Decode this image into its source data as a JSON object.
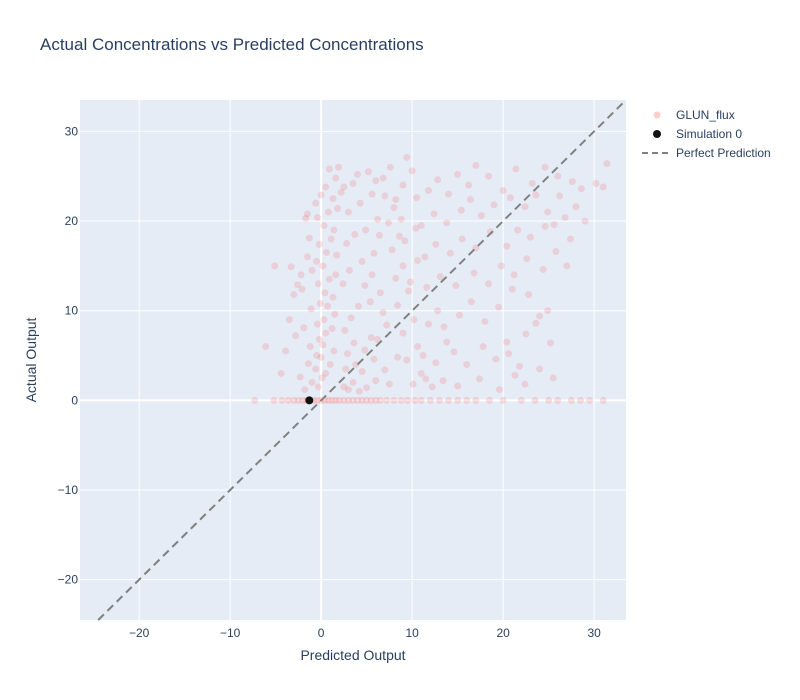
{
  "chart_data": {
    "type": "scatter",
    "title": "Actual Concentrations vs Predicted Concentrations",
    "xlabel": "Predicted Output",
    "ylabel": "Actual Output",
    "xlim": [
      -26.5,
      33.5
    ],
    "ylim": [
      -24.5,
      33.5
    ],
    "x_ticks": [
      -20,
      -10,
      0,
      10,
      20,
      30
    ],
    "y_ticks": [
      -20,
      -10,
      0,
      10,
      20,
      30
    ],
    "grid": true,
    "legend_position": "top-right",
    "series": [
      {
        "name": "GLUN_flux",
        "mode": "markers",
        "color": "#ff0000",
        "opacity": 0.12,
        "points": [
          [
            -7.3,
            0
          ],
          [
            -5.2,
            0
          ],
          [
            -4.3,
            0
          ],
          [
            -3.6,
            0
          ],
          [
            -3.0,
            0
          ],
          [
            -2.5,
            0
          ],
          [
            -2.0,
            0
          ],
          [
            -1.6,
            0
          ],
          [
            -1.2,
            0
          ],
          [
            -0.8,
            0
          ],
          [
            -0.4,
            0
          ],
          [
            0.0,
            0
          ],
          [
            0.4,
            0
          ],
          [
            0.8,
            0
          ],
          [
            1.2,
            0
          ],
          [
            1.6,
            0
          ],
          [
            2.0,
            0
          ],
          [
            2.5,
            0
          ],
          [
            3.0,
            0
          ],
          [
            3.5,
            0
          ],
          [
            4.0,
            0
          ],
          [
            4.5,
            0
          ],
          [
            5.0,
            0
          ],
          [
            5.5,
            0
          ],
          [
            6.0,
            0
          ],
          [
            6.5,
            0
          ],
          [
            7.2,
            0
          ],
          [
            8.0,
            0
          ],
          [
            8.8,
            0
          ],
          [
            9.5,
            0
          ],
          [
            10.3,
            0
          ],
          [
            11.0,
            0
          ],
          [
            12.0,
            0
          ],
          [
            13.0,
            0
          ],
          [
            14.0,
            0
          ],
          [
            15.0,
            0
          ],
          [
            16.0,
            0
          ],
          [
            17.0,
            0
          ],
          [
            18.5,
            0
          ],
          [
            20.0,
            0
          ],
          [
            22.0,
            0
          ],
          [
            23.5,
            0
          ],
          [
            25.0,
            0
          ],
          [
            26.0,
            0
          ],
          [
            27.5,
            0
          ],
          [
            28.5,
            0
          ],
          [
            29.5,
            0
          ],
          [
            31.0,
            0
          ],
          [
            -1.8,
            1.2
          ],
          [
            -1.0,
            2.0
          ],
          [
            -0.6,
            3.5
          ],
          [
            0.0,
            4.8
          ],
          [
            0.2,
            6.2
          ],
          [
            0.5,
            7.5
          ],
          [
            0.3,
            9.0
          ],
          [
            0.7,
            10.5
          ],
          [
            0.4,
            12.0
          ],
          [
            0.9,
            13.5
          ],
          [
            0.2,
            15.0
          ],
          [
            0.6,
            16.5
          ],
          [
            1.1,
            18.0
          ],
          [
            0.3,
            19.5
          ],
          [
            0.8,
            21.0
          ],
          [
            1.3,
            22.5
          ],
          [
            0.5,
            23.8
          ],
          [
            1.6,
            24.8
          ],
          [
            0.9,
            25.8
          ],
          [
            1.9,
            26.0
          ],
          [
            -0.3,
            1.5
          ],
          [
            0.1,
            2.5
          ],
          [
            0.5,
            3.0
          ],
          [
            1.0,
            4.0
          ],
          [
            1.4,
            5.5
          ],
          [
            -0.5,
            5.0
          ],
          [
            -0.2,
            6.8
          ],
          [
            1.2,
            8.0
          ],
          [
            -0.4,
            8.5
          ],
          [
            1.5,
            9.6
          ],
          [
            -0.1,
            10.8
          ],
          [
            1.3,
            11.5
          ],
          [
            -0.3,
            13.0
          ],
          [
            1.6,
            14.0
          ],
          [
            -0.5,
            15.5
          ],
          [
            1.7,
            16.2
          ],
          [
            -0.2,
            17.4
          ],
          [
            1.4,
            19.0
          ],
          [
            -0.4,
            20.4
          ],
          [
            1.8,
            21.4
          ],
          [
            -0.6,
            22.0
          ],
          [
            0.0,
            22.9
          ],
          [
            2.2,
            23.2
          ],
          [
            -1.5,
            16.0
          ],
          [
            -2.2,
            14.0
          ],
          [
            -3.0,
            11.8
          ],
          [
            -3.5,
            9.0
          ],
          [
            -2.8,
            7.2
          ],
          [
            -3.9,
            5.5
          ],
          [
            -4.4,
            3.0
          ],
          [
            -2.3,
            2.6
          ],
          [
            -1.4,
            4.1
          ],
          [
            -1.2,
            6.0
          ],
          [
            -1.9,
            8.1
          ],
          [
            -1.1,
            10.2
          ],
          [
            -2.1,
            12.4
          ],
          [
            -1.0,
            14.5
          ],
          [
            -1.3,
            18.1
          ],
          [
            -1.7,
            20.3
          ],
          [
            -5.1,
            15.0
          ],
          [
            -6.1,
            6.0
          ],
          [
            -2.6,
            12.9
          ],
          [
            -3.3,
            14.9
          ],
          [
            -1.5,
            20.8
          ],
          [
            2.5,
            1.5
          ],
          [
            3.0,
            1.2
          ],
          [
            3.5,
            2.0
          ],
          [
            4.2,
            1.0
          ],
          [
            5.0,
            1.4
          ],
          [
            6.0,
            2.2
          ],
          [
            7.5,
            1.8
          ],
          [
            2.7,
            3.5
          ],
          [
            3.8,
            4.0
          ],
          [
            4.5,
            3.2
          ],
          [
            2.9,
            5.2
          ],
          [
            3.6,
            6.4
          ],
          [
            4.8,
            5.6
          ],
          [
            5.5,
            7.0
          ],
          [
            2.6,
            7.8
          ],
          [
            3.3,
            9.2
          ],
          [
            4.1,
            10.5
          ],
          [
            5.4,
            11.0
          ],
          [
            6.5,
            12.0
          ],
          [
            2.4,
            13.0
          ],
          [
            3.1,
            14.5
          ],
          [
            4.5,
            15.5
          ],
          [
            5.8,
            16.4
          ],
          [
            2.8,
            17.5
          ],
          [
            3.7,
            18.5
          ],
          [
            4.9,
            19.0
          ],
          [
            6.2,
            20.2
          ],
          [
            3.0,
            21.0
          ],
          [
            4.3,
            22.0
          ],
          [
            5.6,
            23.0
          ],
          [
            2.5,
            23.8
          ],
          [
            3.5,
            24.2
          ],
          [
            4.0,
            25.2
          ],
          [
            5.2,
            25.5
          ],
          [
            6.0,
            24.5
          ],
          [
            7.0,
            22.8
          ],
          [
            8.0,
            21.5
          ],
          [
            7.4,
            19.8
          ],
          [
            8.6,
            18.3
          ],
          [
            7.8,
            16.8
          ],
          [
            9.0,
            15.0
          ],
          [
            8.2,
            13.6
          ],
          [
            9.6,
            12.2
          ],
          [
            8.4,
            10.6
          ],
          [
            10.2,
            9.0
          ],
          [
            9.0,
            7.5
          ],
          [
            10.6,
            6.0
          ],
          [
            9.4,
            4.5
          ],
          [
            11.0,
            3.0
          ],
          [
            10.1,
            1.8
          ],
          [
            11.5,
            2.4
          ],
          [
            12.2,
            1.5
          ],
          [
            13.4,
            2.2
          ],
          [
            15.0,
            1.6
          ],
          [
            17.4,
            2.4
          ],
          [
            19.6,
            1.2
          ],
          [
            21.3,
            2.8
          ],
          [
            22.4,
            1.8
          ],
          [
            25.5,
            2.5
          ],
          [
            24.0,
            3.5
          ],
          [
            11.2,
            5.0
          ],
          [
            12.6,
            4.2
          ],
          [
            13.8,
            6.5
          ],
          [
            14.6,
            5.4
          ],
          [
            16.0,
            4.0
          ],
          [
            17.8,
            6.0
          ],
          [
            19.2,
            4.6
          ],
          [
            20.6,
            5.2
          ],
          [
            21.8,
            3.8
          ],
          [
            20.4,
            6.5
          ],
          [
            11.8,
            8.5
          ],
          [
            12.8,
            10.0
          ],
          [
            13.5,
            8.2
          ],
          [
            15.2,
            9.5
          ],
          [
            16.5,
            11.0
          ],
          [
            18.0,
            8.8
          ],
          [
            19.5,
            10.4
          ],
          [
            21.0,
            12.4
          ],
          [
            22.8,
            11.8
          ],
          [
            24.0,
            9.4
          ],
          [
            24.9,
            10.0
          ],
          [
            23.6,
            8.6
          ],
          [
            25.2,
            6.4
          ],
          [
            22.5,
            7.4
          ],
          [
            11.6,
            12.6
          ],
          [
            13.1,
            13.8
          ],
          [
            14.8,
            12.8
          ],
          [
            16.8,
            14.2
          ],
          [
            18.4,
            13.0
          ],
          [
            19.8,
            15.0
          ],
          [
            21.2,
            14.0
          ],
          [
            22.6,
            15.8
          ],
          [
            24.4,
            14.6
          ],
          [
            27.0,
            15.0
          ],
          [
            11.4,
            16.0
          ],
          [
            12.6,
            17.4
          ],
          [
            14.2,
            16.4
          ],
          [
            15.5,
            18.0
          ],
          [
            17.0,
            17.0
          ],
          [
            18.6,
            18.8
          ],
          [
            20.4,
            17.2
          ],
          [
            21.6,
            19.0
          ],
          [
            23.0,
            18.2
          ],
          [
            24.6,
            19.4
          ],
          [
            25.6,
            19.6
          ],
          [
            11.0,
            19.5
          ],
          [
            12.4,
            20.8
          ],
          [
            13.8,
            19.8
          ],
          [
            15.4,
            21.2
          ],
          [
            16.4,
            22.4
          ],
          [
            17.6,
            20.6
          ],
          [
            19.0,
            21.8
          ],
          [
            20.8,
            22.6
          ],
          [
            22.4,
            21.6
          ],
          [
            23.6,
            22.9
          ],
          [
            24.9,
            21.0
          ],
          [
            26.2,
            22.8
          ],
          [
            10.5,
            22.6
          ],
          [
            11.8,
            23.4
          ],
          [
            12.8,
            24.6
          ],
          [
            14.0,
            23.0
          ],
          [
            15.0,
            25.2
          ],
          [
            16.2,
            24.0
          ],
          [
            17.0,
            26.2
          ],
          [
            18.4,
            25.0
          ],
          [
            20.0,
            23.4
          ],
          [
            21.4,
            25.8
          ],
          [
            23.2,
            24.2
          ],
          [
            24.6,
            26.0
          ],
          [
            26.0,
            25.0
          ],
          [
            27.6,
            24.4
          ],
          [
            28.6,
            23.6
          ],
          [
            30.2,
            24.2
          ],
          [
            31.0,
            23.8
          ],
          [
            31.4,
            26.4
          ],
          [
            26.8,
            20.4
          ],
          [
            28.0,
            21.6
          ],
          [
            29.0,
            20.0
          ],
          [
            27.4,
            18.0
          ],
          [
            25.8,
            16.6
          ],
          [
            9.4,
            27.1
          ],
          [
            10.0,
            25.6
          ],
          [
            9.0,
            24.0
          ],
          [
            8.2,
            22.4
          ],
          [
            7.6,
            26.0
          ],
          [
            6.8,
            24.8
          ],
          [
            6.4,
            18.4
          ],
          [
            5.6,
            14.0
          ],
          [
            4.8,
            12.8
          ],
          [
            6.8,
            9.8
          ],
          [
            7.2,
            8.4
          ],
          [
            6.2,
            6.8
          ],
          [
            8.4,
            4.8
          ],
          [
            7.0,
            3.4
          ],
          [
            5.8,
            4.6
          ],
          [
            9.8,
            13.2
          ],
          [
            10.6,
            15.6
          ],
          [
            9.2,
            17.8
          ],
          [
            10.4,
            19.2
          ],
          [
            8.8,
            20.2
          ]
        ]
      },
      {
        "name": "Simulation 0",
        "mode": "markers",
        "color": "#111111",
        "points": [
          [
            -1.3,
            0
          ]
        ]
      },
      {
        "name": "Perfect Prediction",
        "mode": "lines",
        "dash": "dash",
        "color": "#808080",
        "points": [
          [
            -26.5,
            -26.5
          ],
          [
            33.5,
            33.5
          ]
        ]
      }
    ]
  }
}
